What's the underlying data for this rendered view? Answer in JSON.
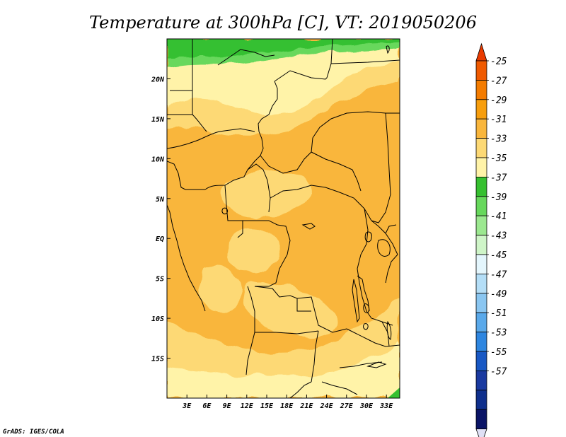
{
  "title": "Temperature at 300hPa [C], VT: 2019050206",
  "credit": "GrADS: IGES/COLA",
  "map": {
    "lon_range": [
      0,
      35
    ],
    "lat_range": [
      -20,
      25
    ],
    "x_ticks": [
      {
        "lon": 3,
        "label": "3E"
      },
      {
        "lon": 6,
        "label": "6E"
      },
      {
        "lon": 9,
        "label": "9E"
      },
      {
        "lon": 12,
        "label": "12E"
      },
      {
        "lon": 15,
        "label": "15E"
      },
      {
        "lon": 18,
        "label": "18E"
      },
      {
        "lon": 21,
        "label": "21E"
      },
      {
        "lon": 24,
        "label": "24E"
      },
      {
        "lon": 27,
        "label": "27E"
      },
      {
        "lon": 30,
        "label": "30E"
      },
      {
        "lon": 33,
        "label": "33E"
      }
    ],
    "y_ticks": [
      {
        "lat": 20,
        "label": "20N"
      },
      {
        "lat": 15,
        "label": "15N"
      },
      {
        "lat": 10,
        "label": "10N"
      },
      {
        "lat": 5,
        "label": "5N"
      },
      {
        "lat": 0,
        "label": "EQ"
      },
      {
        "lat": -5,
        "label": "5S"
      },
      {
        "lat": -10,
        "label": "10S"
      },
      {
        "lat": -15,
        "label": "15S"
      }
    ]
  },
  "colorbar": {
    "levels": [
      {
        "label": "-25",
        "color": "#f05a00"
      },
      {
        "label": "-27",
        "color": "#f47c00"
      },
      {
        "label": "-29",
        "color": "#f79e0d"
      },
      {
        "label": "-31",
        "color": "#f9b63c"
      },
      {
        "label": "-33",
        "color": "#fdd975"
      },
      {
        "label": "-35",
        "color": "#fff3a8"
      },
      {
        "label": "-37",
        "color": "#36c030"
      },
      {
        "label": "-39",
        "color": "#67d85c"
      },
      {
        "label": "-41",
        "color": "#9ce890"
      },
      {
        "label": "-43",
        "color": "#cff5c8"
      },
      {
        "label": "-45",
        "color": "#e4f6fd"
      },
      {
        "label": "-47",
        "color": "#b4def7"
      },
      {
        "label": "-49",
        "color": "#8ac6f1"
      },
      {
        "label": "-51",
        "color": "#5aa9ea"
      },
      {
        "label": "-53",
        "color": "#2e86e0"
      },
      {
        "label": "-55",
        "color": "#1858c4"
      },
      {
        "label": "-57",
        "color": "#1a3aa0"
      }
    ],
    "top_arrow_color": "#e83a00",
    "low_boxes": [
      "#0f2f8c",
      "#0a1466"
    ],
    "bottom_arrow_color": "#dfe0f5"
  },
  "fill_colors": {
    "green_dark": "#36c030",
    "green_light": "#67d85c",
    "pale": "#fff3a8",
    "light": "#fdd975",
    "mid": "#f9b63c"
  }
}
